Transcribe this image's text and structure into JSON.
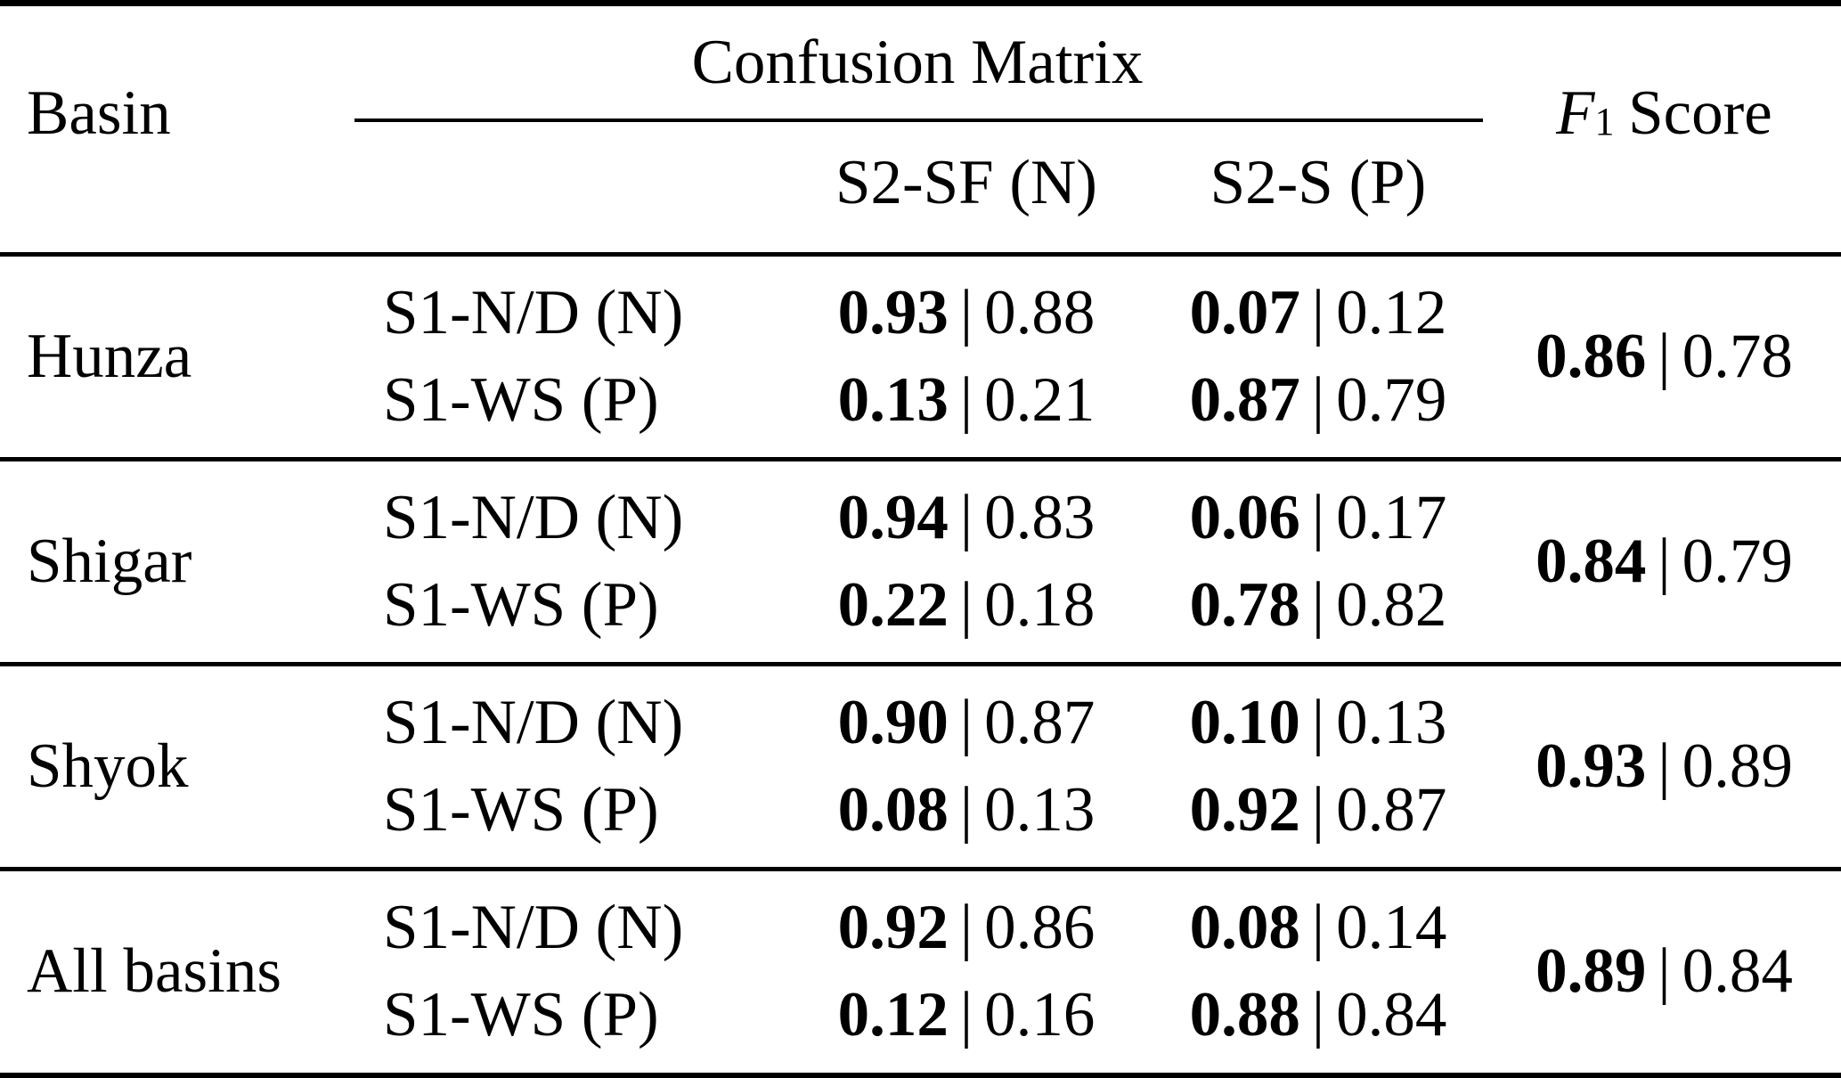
{
  "page": {
    "background": "#ffffff",
    "text_color": "#000000"
  },
  "table": {
    "header": {
      "basin": "Basin",
      "confusion_matrix": "Confusion Matrix",
      "f1": {
        "letter": "F",
        "subscript": "1",
        "word": "Score"
      },
      "columns": {
        "negative": "S2-SF (N)",
        "positive": "S2-S (P)"
      }
    },
    "separator": "|",
    "row_labels": [
      "S1-N/D (N)",
      "S1-WS (P)"
    ],
    "rows": [
      {
        "basin": "Hunza",
        "s2sf": [
          {
            "bold": "0.93",
            "plain": "0.88"
          },
          {
            "bold": "0.13",
            "plain": "0.21"
          }
        ],
        "s2s": [
          {
            "bold": "0.07",
            "plain": "0.12"
          },
          {
            "bold": "0.87",
            "plain": "0.79"
          }
        ],
        "f1": {
          "bold": "0.86",
          "plain": "0.78"
        }
      },
      {
        "basin": "Shigar",
        "s2sf": [
          {
            "bold": "0.94",
            "plain": "0.83"
          },
          {
            "bold": "0.22",
            "plain": "0.18"
          }
        ],
        "s2s": [
          {
            "bold": "0.06",
            "plain": "0.17"
          },
          {
            "bold": "0.78",
            "plain": "0.82"
          }
        ],
        "f1": {
          "bold": "0.84",
          "plain": "0.79"
        }
      },
      {
        "basin": "Shyok",
        "s2sf": [
          {
            "bold": "0.90",
            "plain": "0.87"
          },
          {
            "bold": "0.08",
            "plain": "0.13"
          }
        ],
        "s2s": [
          {
            "bold": "0.10",
            "plain": "0.13"
          },
          {
            "bold": "0.92",
            "plain": "0.87"
          }
        ],
        "f1": {
          "bold": "0.93",
          "plain": "0.89"
        }
      },
      {
        "basin": "All basins",
        "s2sf": [
          {
            "bold": "0.92",
            "plain": "0.86"
          },
          {
            "bold": "0.12",
            "plain": "0.16"
          }
        ],
        "s2s": [
          {
            "bold": "0.08",
            "plain": "0.14"
          },
          {
            "bold": "0.88",
            "plain": "0.84"
          }
        ],
        "f1": {
          "bold": "0.89",
          "plain": "0.84"
        }
      }
    ]
  }
}
